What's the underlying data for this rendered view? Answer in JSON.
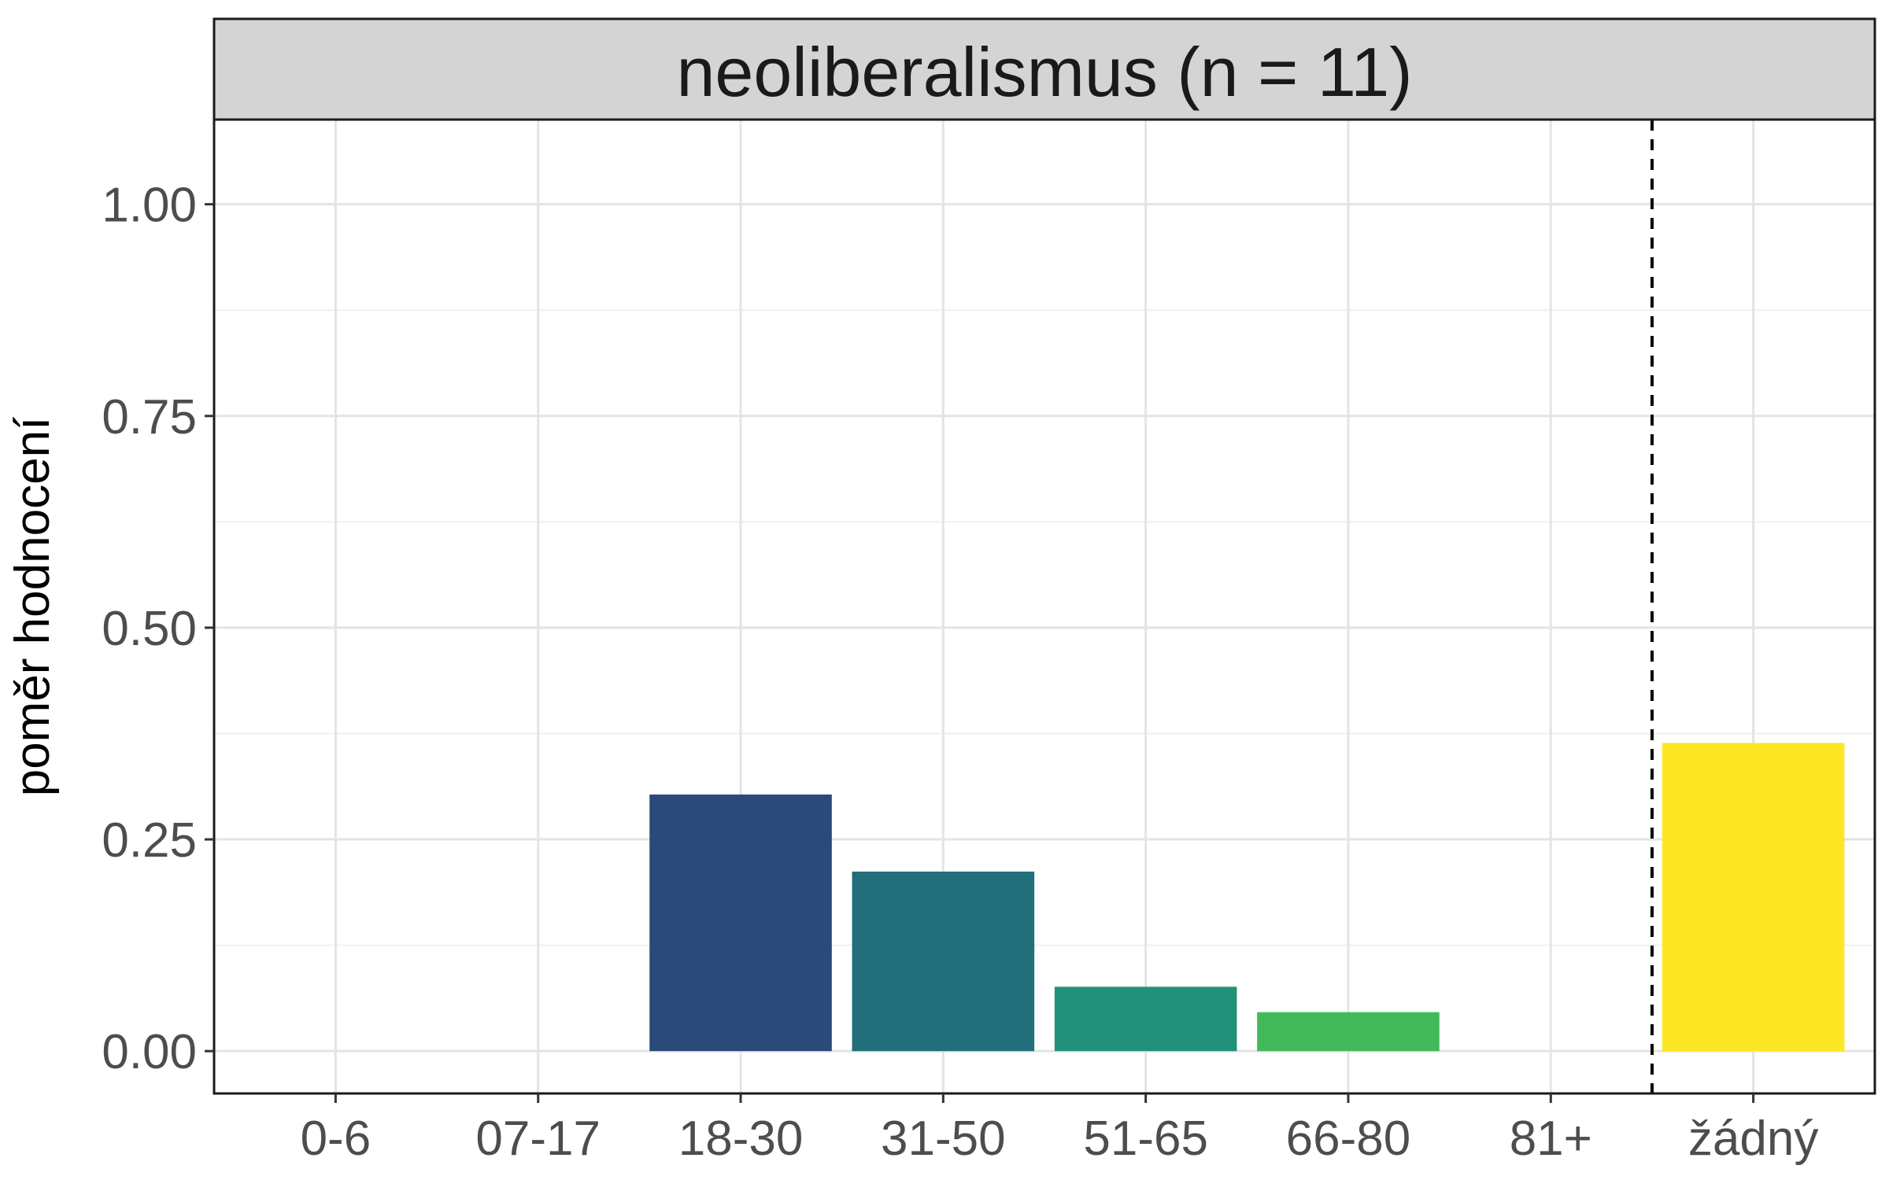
{
  "chart_data": {
    "type": "bar",
    "title": "neoliberalismus (n = 11)",
    "xlabel": "",
    "ylabel": "poměr hodnocení",
    "categories": [
      "0-6",
      "07-17",
      "18-30",
      "31-50",
      "51-65",
      "66-80",
      "81+",
      "žádný"
    ],
    "values": [
      0,
      0,
      0.303,
      0.212,
      0.076,
      0.046,
      0,
      0.364
    ],
    "colors": [
      "#440154",
      "#46337e",
      "#2b4a7a",
      "#226e7a",
      "#21917a",
      "#42b95a",
      "#9fd73a",
      "#fde725"
    ],
    "ylim": [
      -0.05,
      1.1
    ],
    "yticks": [
      0,
      0.25,
      0.5,
      0.75,
      1.0
    ],
    "ytick_labels": [
      "0.00",
      "0.25",
      "0.50",
      "0.75",
      "1.00"
    ],
    "separator_after_category": "81+",
    "grid": true,
    "legend": "none"
  }
}
